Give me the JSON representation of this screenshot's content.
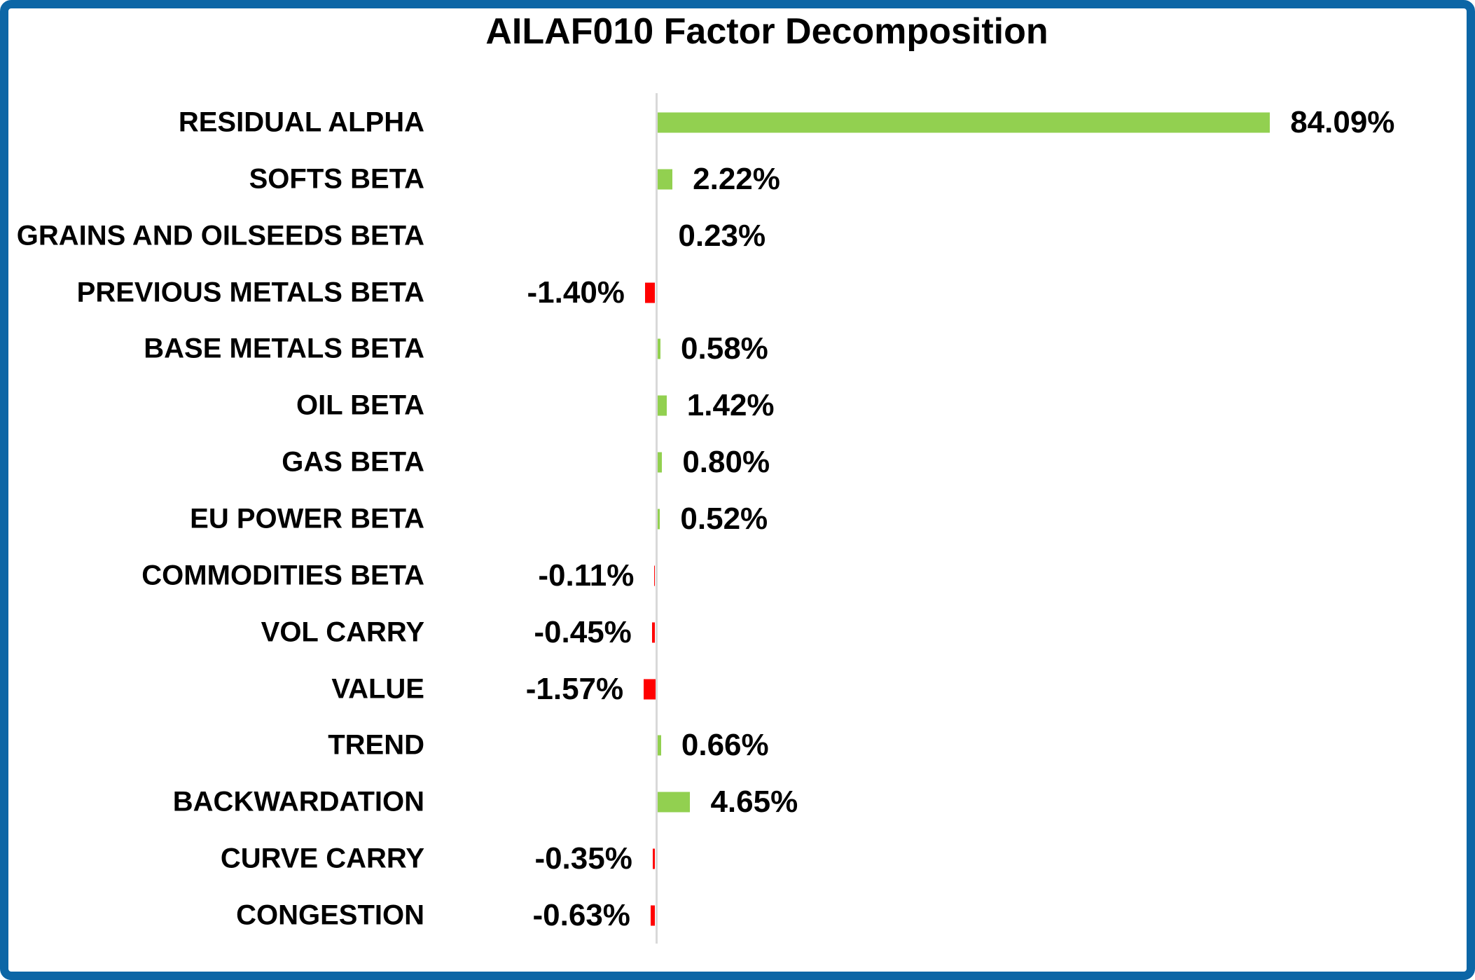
{
  "frame": {
    "border_color": "#0c66a6",
    "background": "#ffffff"
  },
  "chart_data": {
    "type": "bar",
    "orientation": "horizontal",
    "title": "AILAF010 Factor Decomposition",
    "categories": [
      "RESIDUAL ALPHA",
      "SOFTS BETA",
      "GRAINS AND OILSEEDS BETA",
      "PREVIOUS METALS BETA",
      "BASE METALS BETA",
      "OIL BETA",
      "GAS BETA",
      "EU POWER BETA",
      "COMMODITIES BETA",
      "VOL CARRY",
      "VALUE",
      "TREND",
      "BACKWARDATION",
      "CURVE CARRY",
      "CONGESTION"
    ],
    "values": [
      84.09,
      2.22,
      0.23,
      -1.4,
      0.58,
      1.42,
      0.8,
      0.52,
      -0.11,
      -0.45,
      -1.57,
      0.66,
      4.65,
      -0.35,
      -0.63
    ],
    "value_labels": [
      "84.09%",
      "2.22%",
      "0.23%",
      "-1.40%",
      "0.58%",
      "1.42%",
      "0.80%",
      "0.52%",
      "-0.11%",
      "-0.45%",
      "-1.57%",
      "0.66%",
      "4.65%",
      "-0.35%",
      "-0.63%"
    ],
    "positive_color": "#92d050",
    "negative_color": "#ff0000",
    "axis_color": "#d9d9d9",
    "label_color": "#000000",
    "xlim": [
      -2,
      90
    ],
    "grid": "off",
    "legend": "none",
    "data_labels": "on"
  }
}
